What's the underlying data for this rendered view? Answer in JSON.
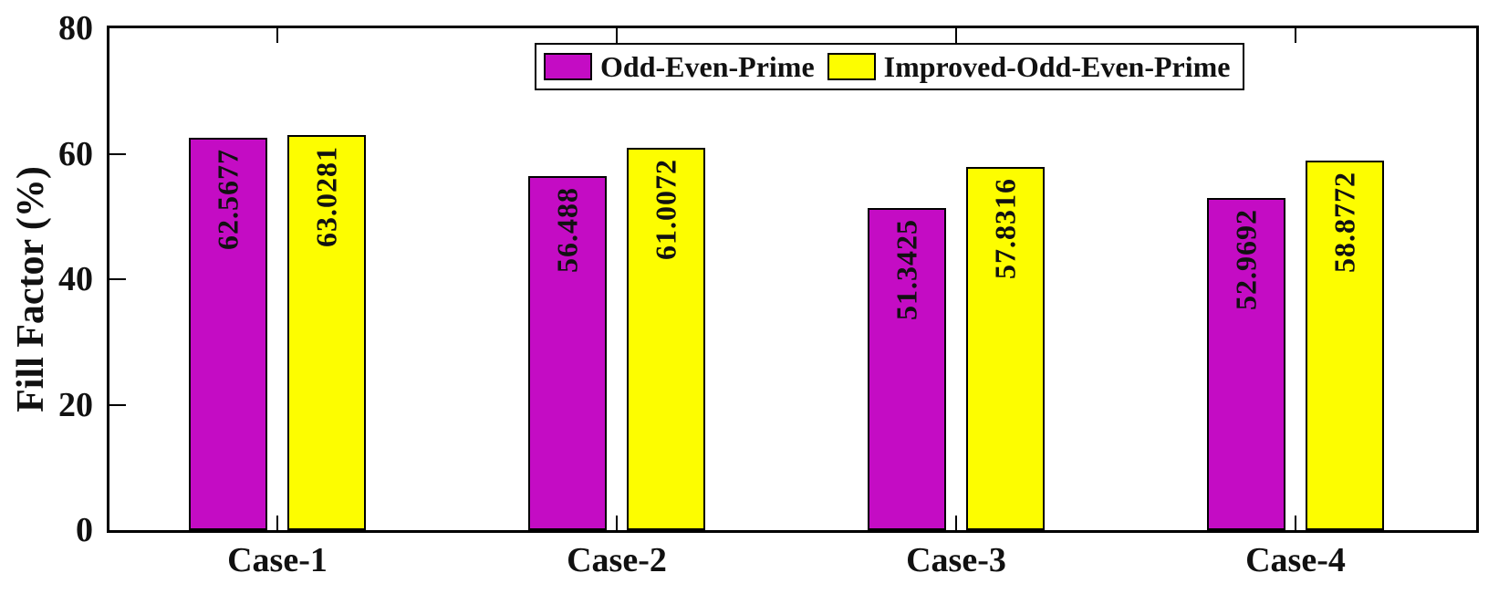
{
  "chart_data": {
    "type": "bar",
    "title": "",
    "categories": [
      "Case-1",
      "Case-2",
      "Case-3",
      "Case-4"
    ],
    "series": [
      {
        "name": "Odd-Even-Prime",
        "color": "#c40cc4",
        "values": [
          62.5677,
          56.488,
          51.3425,
          52.9692
        ],
        "value_labels": [
          "62.5677",
          "56.488",
          "51.3425",
          "52.9692"
        ]
      },
      {
        "name": "Improved-Odd-Even-Prime",
        "color": "#fdfd00",
        "values": [
          63.0281,
          61.0072,
          57.8316,
          58.8772
        ],
        "value_labels": [
          "63.0281",
          "61.0072",
          "57.8316",
          "58.8772"
        ]
      }
    ],
    "xlabel": "",
    "ylabel": "Fill Factor (%)",
    "ylim": [
      0,
      80
    ],
    "yticks": [
      0,
      20,
      40,
      60,
      80
    ],
    "ytick_labels": [
      "0",
      "20",
      "40",
      "60",
      "80"
    ],
    "bar_edge_color": "#000000",
    "value_label_rotation": 90,
    "grid": false,
    "legend": {
      "position": "top-center",
      "entries": [
        "Odd-Even-Prime",
        "Improved-Odd-Even-Prime"
      ]
    }
  }
}
